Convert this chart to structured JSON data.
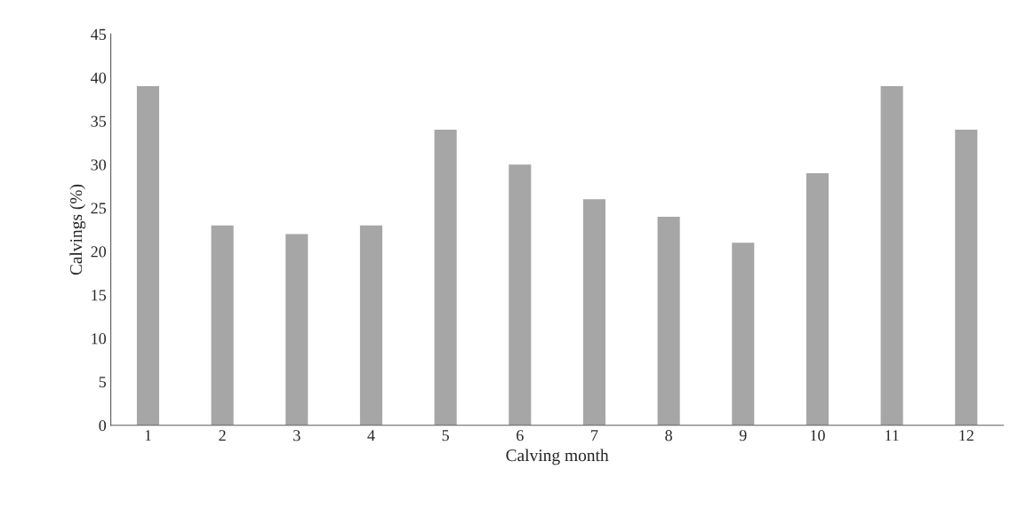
{
  "chart_data": {
    "type": "bar",
    "xlabel": "Calving month",
    "ylabel": "Calvings (%)",
    "categories": [
      "1",
      "2",
      "3",
      "4",
      "5",
      "6",
      "7",
      "8",
      "9",
      "10",
      "11",
      "12"
    ],
    "values": [
      39,
      23,
      22,
      23,
      34,
      30,
      26,
      24,
      21,
      29,
      39,
      34
    ],
    "color": "#a6a6a6",
    "ylim": [
      0,
      45
    ],
    "yticks": [
      0,
      5,
      10,
      15,
      20,
      25,
      30,
      35,
      40,
      45
    ],
    "grid": false,
    "legend": false
  }
}
